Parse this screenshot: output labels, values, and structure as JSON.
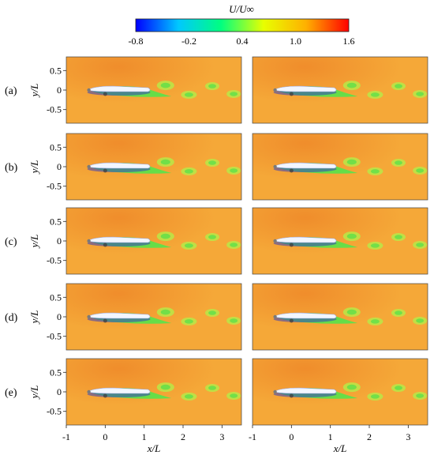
{
  "colorbar": {
    "title": "U/U∞",
    "ticks": [
      {
        "label": "-0.8",
        "value": -0.8
      },
      {
        "label": "-0.2",
        "value": -0.2
      },
      {
        "label": "0.4",
        "value": 0.4
      },
      {
        "label": "1.0",
        "value": 1.0
      },
      {
        "label": "1.6",
        "value": 1.6
      }
    ],
    "range": [
      -0.8,
      1.6
    ],
    "colormap": [
      "#0000ff",
      "#00c8ff",
      "#00ff80",
      "#e8ff00",
      "#ffb000",
      "#ff0000"
    ]
  },
  "rows": [
    {
      "label": "(a)"
    },
    {
      "label": "(b)"
    },
    {
      "label": "(c)"
    },
    {
      "label": "(d)"
    },
    {
      "label": "(e)"
    }
  ],
  "axes": {
    "ylabel": "y/L",
    "xlabel": "x/L",
    "yticks": [
      {
        "label": "0.5",
        "value": 0.5
      },
      {
        "label": "0",
        "value": 0
      },
      {
        "label": "-0.5",
        "value": -0.5
      }
    ],
    "xticks": [
      {
        "label": "-1",
        "value": -1
      },
      {
        "label": "0",
        "value": 0
      },
      {
        "label": "1",
        "value": 1
      },
      {
        "label": "2",
        "value": 2
      },
      {
        "label": "3",
        "value": 3
      }
    ],
    "xlim": [
      -1,
      3.5
    ],
    "ylim": [
      -0.85,
      0.85
    ]
  },
  "field": {
    "background": "#f5a838",
    "upstream_tint": "#ef8a2a",
    "wake": "#5ee04a",
    "wake_light": "#b9e848",
    "vessel": "#f2f6ff",
    "vessel_shadow": "#3340c0"
  }
}
